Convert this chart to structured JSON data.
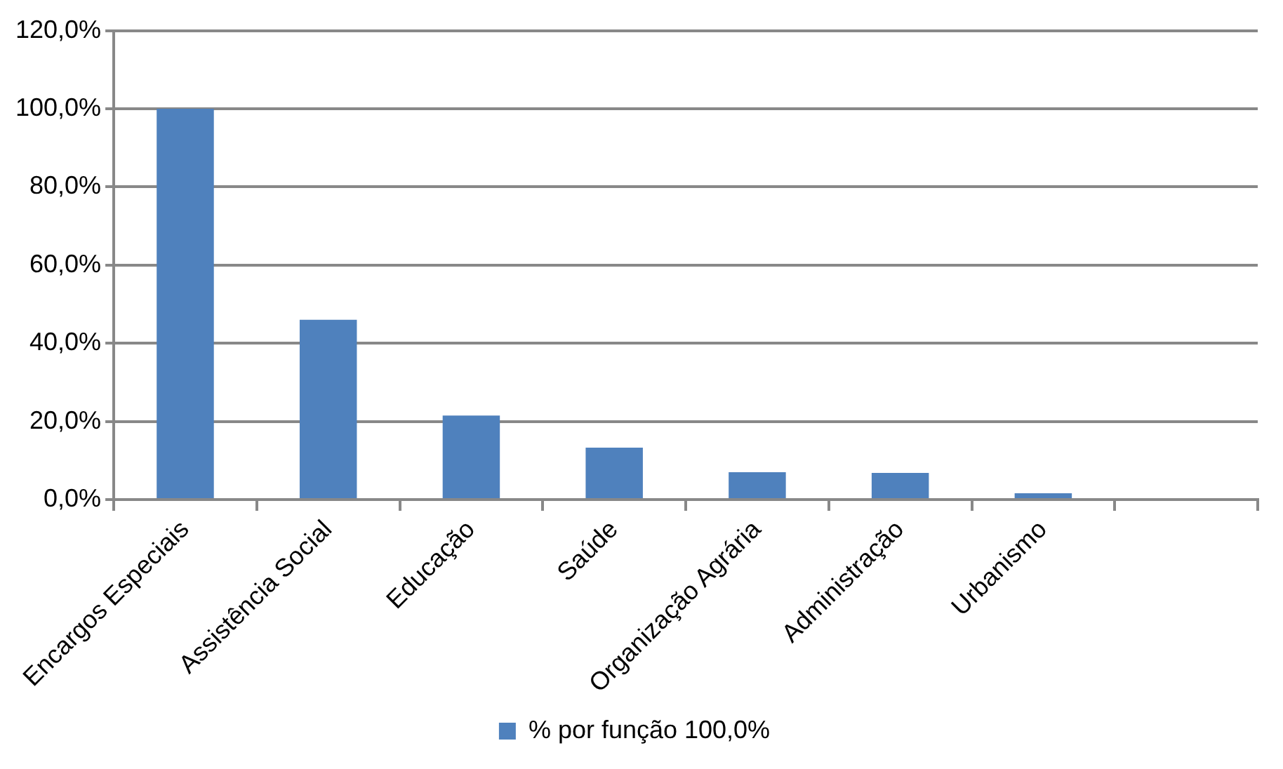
{
  "chart_data": {
    "type": "bar",
    "categories": [
      "Encargos Especiais",
      "Assistência Social",
      "Educação",
      "Saúde",
      "Organização Agrária",
      "Administração",
      "Urbanismo",
      null
    ],
    "series": [
      {
        "name": "% por função 100,0%",
        "color": "#4f81bd",
        "values": [
          100,
          46,
          21.5,
          13.3,
          7,
          6.8,
          1.6,
          null
        ]
      }
    ],
    "ylim": [
      0,
      120
    ],
    "yticks": [
      {
        "value": 0,
        "label": "0,0%"
      },
      {
        "value": 20,
        "label": "20,0%"
      },
      {
        "value": 40,
        "label": "40,0%"
      },
      {
        "value": 60,
        "label": "60,0%"
      },
      {
        "value": 80,
        "label": "80,0%"
      },
      {
        "value": 100,
        "label": "100,0%"
      },
      {
        "value": 120,
        "label": "120,0%"
      }
    ],
    "grid": "y",
    "legend": "bottom"
  }
}
